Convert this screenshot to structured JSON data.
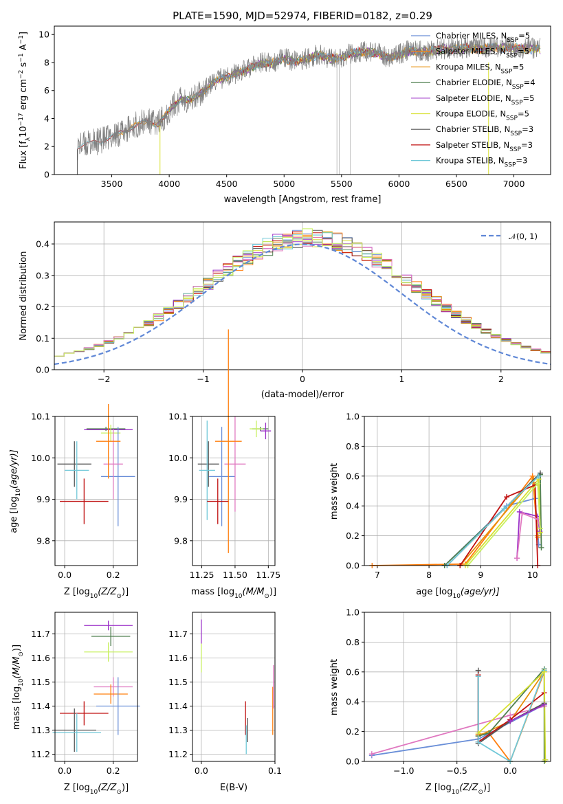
{
  "figure": {
    "title": "PLATE=1590, MJD=52974, FIBERID=0182, z=0.29"
  },
  "palette": {
    "Chabrier MILES": "#6a8fd8",
    "Salpeter MILES": "#ff7f0e",
    "Kroupa MILES": "#e8900c",
    "Chabrier ELODIE": "#4f7f4f",
    "Salpeter ELODIE": "#9b30c8",
    "Kroupa ELODIE": "#d8e030",
    "Chabrier STELIB": "#555555",
    "Salpeter STELIB": "#c01010",
    "Kroupa STELIB": "#70c8d8",
    "pink": "#e078c0",
    "lime": "#c8f060"
  },
  "chart_data": [
    {
      "id": "spectrum",
      "type": "line",
      "xlabel": "wavelength [Angstrom, rest frame]",
      "ylabel": "Flux [f",
      "ylabel_parts": [
        "Flux [f",
        "λ",
        "10",
        "−17",
        " erg cm",
        "−2",
        " s",
        "−1",
        " A",
        "−1",
        "]"
      ],
      "xlim": [
        3000,
        7320
      ],
      "ylim": [
        0,
        10.6
      ],
      "xticks": [
        "3500",
        "4000",
        "4500",
        "5000",
        "5500",
        "6000",
        "6500",
        "7000"
      ],
      "yticks": [
        "0",
        "2",
        "4",
        "6",
        "8",
        "10"
      ],
      "legend": [
        {
          "text": "Chabrier MILES, N",
          "sub": "SSP",
          "tail": "=5"
        },
        {
          "text": "Salpeter MILES, N",
          "sub": "SSP",
          "tail": "=5"
        },
        {
          "text": "Kroupa MILES, N",
          "sub": "SSP",
          "tail": "=5"
        },
        {
          "text": "Chabrier ELODIE, N",
          "sub": "SSP",
          "tail": "=4"
        },
        {
          "text": "Salpeter ELODIE, N",
          "sub": "SSP",
          "tail": "=5"
        },
        {
          "text": "Kroupa ELODIE, N",
          "sub": "SSP",
          "tail": "=5"
        },
        {
          "text": "Chabrier STELIB, N",
          "sub": "SSP",
          "tail": "=3"
        },
        {
          "text": "Salpeter STELIB, N",
          "sub": "SSP",
          "tail": "=3"
        },
        {
          "text": "Kroupa STELIB, N",
          "sub": "SSP",
          "tail": "=3"
        }
      ],
      "legend_placement": "upper-right",
      "grid": false,
      "envelope": {
        "x": [
          3200,
          3300,
          3400,
          3500,
          3600,
          3700,
          3800,
          3900,
          4000,
          4100,
          4200,
          4300,
          4400,
          4500,
          4600,
          4700,
          4800,
          4900,
          5000,
          5100,
          5200,
          5300,
          5400,
          5500,
          5600,
          5700,
          5800,
          5900,
          6000,
          6100,
          6200,
          6300,
          6400,
          6500,
          6600,
          6700,
          6800,
          6900,
          7000,
          7100,
          7200
        ],
        "y": [
          2.0,
          2.2,
          2.4,
          2.7,
          3.1,
          3.5,
          3.8,
          3.6,
          4.6,
          5.4,
          5.4,
          6.0,
          6.7,
          7.0,
          7.3,
          7.6,
          8.0,
          8.0,
          8.3,
          8.1,
          8.3,
          8.6,
          8.3,
          8.4,
          8.7,
          8.8,
          8.7,
          8.4,
          8.6,
          8.9,
          8.8,
          8.9,
          9.0,
          9.0,
          9.1,
          9.0,
          9.1,
          9.1,
          9.1,
          9.0,
          9.0
        ]
      }
    },
    {
      "id": "residuals",
      "type": "histogram",
      "xlabel": "(data-model)/error",
      "ylabel": "Normed distribution",
      "xlim": [
        -2.5,
        2.5
      ],
      "ylim": [
        0,
        0.47
      ],
      "xticks": [
        "−2",
        "−1",
        "0",
        "1",
        "2"
      ],
      "xtick_values": [
        -2,
        -1,
        0,
        1,
        2
      ],
      "yticks": [
        "0.0",
        "0.1",
        "0.2",
        "0.3",
        "0.4"
      ],
      "ytick_values": [
        0,
        0.1,
        0.2,
        0.3,
        0.4
      ],
      "grid": true,
      "legend": "𝒩(0, 1)",
      "legend_placement": "upper-right",
      "bin_width": 0.1
    },
    {
      "id": "age-vs-Z",
      "type": "errorbar",
      "xlabel": "Z [log",
      "xlabel_parts": [
        "Z [log",
        "10",
        "(Z/Z",
        "⊙",
        ")]"
      ],
      "ylabel_parts": [
        "age  [log",
        "10",
        "(age/yr)]"
      ],
      "xlim": [
        -0.04,
        0.3
      ],
      "ylim": [
        9.74,
        10.1
      ],
      "xticks": [
        "0.0",
        "0.2"
      ],
      "xtick_values": [
        0,
        0.2
      ],
      "yticks": [
        "9.8",
        "9.9",
        "10.0",
        "10.1"
      ],
      "ytick_values": [
        9.8,
        9.9,
        10.0,
        10.1
      ],
      "points": [
        {
          "x": 0.17,
          "xe": 0.08,
          "y": 10.07,
          "ye": 0.005,
          "c": "#4f7f4f"
        },
        {
          "x": 0.18,
          "xe": 0.1,
          "y": 10.068,
          "ye": 0.005,
          "c": "#9b30c8"
        },
        {
          "x": 0.19,
          "xe": 0.04,
          "y": 10.06,
          "ye": 0.02,
          "c": "#c8f060"
        },
        {
          "x": 0.22,
          "xe": 0.07,
          "y": 9.955,
          "ye": 0.12,
          "c": "#6a8fd8"
        },
        {
          "x": 0.2,
          "xe": 0.04,
          "y": 9.985,
          "ye": 0.085,
          "c": "#e078c0"
        },
        {
          "x": 0.18,
          "xe": 0.05,
          "y": 10.04,
          "ye": 0.09,
          "c": "#ff7f0e"
        },
        {
          "x": 0.04,
          "xe": 0.07,
          "y": 9.985,
          "ye": 0.055,
          "c": "#555555"
        },
        {
          "x": 0.05,
          "xe": 0.05,
          "y": 9.97,
          "ye": 0.07,
          "c": "#70c8d8"
        },
        {
          "x": 0.08,
          "xe": 0.1,
          "y": 9.895,
          "ye": 0.055,
          "c": "#c01010"
        }
      ]
    },
    {
      "id": "age-vs-mass",
      "type": "errorbar",
      "xlabel_parts": [
        "mass [log",
        "10",
        "(M/M",
        "⊙",
        ")]"
      ],
      "xlim": [
        11.18,
        11.8
      ],
      "ylim": [
        9.74,
        10.1
      ],
      "xticks": [
        "11.25",
        "11.50",
        "11.75"
      ],
      "xtick_values": [
        11.25,
        11.5,
        11.75
      ],
      "yticks": [
        "9.8",
        "9.9",
        "10.0",
        "10.1"
      ],
      "ytick_values": [
        9.8,
        9.9,
        10.0,
        10.1
      ],
      "points": [
        {
          "x": 11.69,
          "xe": 0.06,
          "y": 10.07,
          "ye": 0.005,
          "c": "#4f7f4f"
        },
        {
          "x": 11.73,
          "xe": 0.04,
          "y": 10.065,
          "ye": 0.02,
          "c": "#9b30c8"
        },
        {
          "x": 11.66,
          "xe": 0.05,
          "y": 10.07,
          "ye": 0.02,
          "c": "#c8f060"
        },
        {
          "x": 11.4,
          "xe": 0.1,
          "y": 9.955,
          "ye": 0.12,
          "c": "#6a8fd8"
        },
        {
          "x": 11.5,
          "xe": 0.08,
          "y": 9.985,
          "ye": 0.115,
          "c": "#e078c0"
        },
        {
          "x": 11.45,
          "xe": 0.1,
          "y": 10.04,
          "ye": 0.27,
          "c": "#ff7f0e"
        },
        {
          "x": 11.3,
          "xe": 0.08,
          "y": 9.985,
          "ye": 0.055,
          "c": "#555555"
        },
        {
          "x": 11.29,
          "xe": 0.06,
          "y": 9.97,
          "ye": 0.12,
          "c": "#70c8d8"
        },
        {
          "x": 11.37,
          "xe": 0.08,
          "y": 9.895,
          "ye": 0.055,
          "c": "#c01010"
        }
      ]
    },
    {
      "id": "massweight-vs-age",
      "type": "line",
      "xlabel_parts": [
        "age  [log",
        "10",
        "(age/yr)]"
      ],
      "ylabel": "mass weight",
      "xlim": [
        6.75,
        10.35
      ],
      "ylim": [
        0,
        1.0
      ],
      "xticks": [
        "7",
        "8",
        "9",
        "10"
      ],
      "xtick_values": [
        7,
        8,
        9,
        10
      ],
      "yticks": [
        "0.0",
        "0.2",
        "0.4",
        "0.6",
        "0.8",
        "1.0"
      ],
      "ytick_values": [
        0,
        0.2,
        0.4,
        0.6,
        0.8,
        1.0
      ],
      "grid": true,
      "series": [
        {
          "c": "#6a8fd8",
          "x": [
            8.3,
            9.5,
            10.05,
            10.12
          ],
          "y": [
            0.0,
            0.4,
            0.45,
            0.14
          ]
        },
        {
          "c": "#ff7f0e",
          "x": [
            6.9,
            8.7,
            10.0,
            10.1
          ],
          "y": [
            0.0,
            0.01,
            0.6,
            0.19
          ]
        },
        {
          "c": "#e8900c",
          "x": [
            8.6,
            10.02,
            10.1
          ],
          "y": [
            0.0,
            0.58,
            0.2
          ]
        },
        {
          "c": "#4f7f4f",
          "x": [
            8.3,
            10.15,
            10.17
          ],
          "y": [
            0.0,
            0.61,
            0.12
          ]
        },
        {
          "c": "#9b30c8",
          "x": [
            9.7,
            9.75,
            10.1,
            10.14
          ],
          "y": [
            0.05,
            0.36,
            0.33,
            0.23
          ]
        },
        {
          "c": "#d8e030",
          "x": [
            8.7,
            10.12,
            10.15
          ],
          "y": [
            0.0,
            0.58,
            0.22
          ]
        },
        {
          "c": "#555555",
          "x": [
            8.35,
            10.15
          ],
          "y": [
            0.0,
            0.62
          ]
        },
        {
          "c": "#c01010",
          "x": [
            8.6,
            9.5,
            10.05,
            10.1
          ],
          "y": [
            0.0,
            0.46,
            0.54,
            0.0
          ]
        },
        {
          "c": "#70c8d8",
          "x": [
            8.35,
            9.45,
            10.12
          ],
          "y": [
            0.0,
            0.38,
            0.6
          ]
        },
        {
          "c": "#e078c0",
          "x": [
            9.7,
            9.8,
            10.1,
            10.15
          ],
          "y": [
            0.05,
            0.35,
            0.31,
            0.25
          ]
        },
        {
          "c": "#c8f060",
          "x": [
            8.75,
            10.1,
            10.15
          ],
          "y": [
            0.0,
            0.55,
            0.25
          ]
        }
      ]
    },
    {
      "id": "mass-vs-Z",
      "type": "errorbar",
      "xlabel_parts": [
        "Z [log",
        "10",
        "(Z/Z",
        "⊙",
        ")]"
      ],
      "ylabel_parts": [
        "mass [log",
        "10",
        "(M/M",
        "⊙",
        ")]"
      ],
      "xlim": [
        -0.04,
        0.3
      ],
      "ylim": [
        11.17,
        11.79
      ],
      "xticks": [
        "0.0",
        "0.2"
      ],
      "xtick_values": [
        0,
        0.2
      ],
      "yticks": [
        "11.2",
        "11.3",
        "11.4",
        "11.5",
        "11.6",
        "11.7"
      ],
      "ytick_values": [
        11.2,
        11.3,
        11.4,
        11.5,
        11.6,
        11.7
      ],
      "points": [
        {
          "x": 0.18,
          "xe": 0.1,
          "y": 11.735,
          "ye": 0.02,
          "c": "#9b30c8"
        },
        {
          "x": 0.19,
          "xe": 0.08,
          "y": 11.69,
          "ye": 0.04,
          "c": "#4f7f4f"
        },
        {
          "x": 0.18,
          "xe": 0.1,
          "y": 11.625,
          "ye": 0.04,
          "c": "#c8f060"
        },
        {
          "x": 0.2,
          "xe": 0.08,
          "y": 11.48,
          "ye": 0.04,
          "c": "#e078c0"
        },
        {
          "x": 0.19,
          "xe": 0.07,
          "y": 11.45,
          "ye": 0.04,
          "c": "#ff7f0e"
        },
        {
          "x": 0.22,
          "xe": 0.09,
          "y": 11.4,
          "ye": 0.12,
          "c": "#6a8fd8"
        },
        {
          "x": 0.08,
          "xe": 0.1,
          "y": 11.37,
          "ye": 0.05,
          "c": "#c01010"
        },
        {
          "x": 0.04,
          "xe": 0.09,
          "y": 11.3,
          "ye": 0.09,
          "c": "#555555"
        },
        {
          "x": 0.05,
          "xe": 0.1,
          "y": 11.29,
          "ye": 0.08,
          "c": "#70c8d8"
        }
      ]
    },
    {
      "id": "mass-vs-EBV",
      "type": "errorbar",
      "xlabel": "E(B-V)",
      "xlim": [
        -0.012,
        0.1
      ],
      "ylim": [
        11.17,
        11.79
      ],
      "xticks": [
        "0.0",
        "0.1"
      ],
      "xtick_values": [
        0,
        0.1
      ],
      "yticks": [
        "11.2",
        "11.3",
        "11.4",
        "11.5",
        "11.6",
        "11.7"
      ],
      "ytick_values": [
        11.2,
        11.3,
        11.4,
        11.5,
        11.6,
        11.7
      ],
      "points": [
        {
          "x": 0.0,
          "xe": 0,
          "y": 11.71,
          "ye": 0.05,
          "c": "#9b30c8"
        },
        {
          "x": 0.0,
          "xe": 0,
          "y": 11.6,
          "ye": 0.06,
          "c": "#c8f060"
        },
        {
          "x": 0.06,
          "xe": 0,
          "y": 11.35,
          "ye": 0.07,
          "c": "#c01010"
        },
        {
          "x": 0.061,
          "xe": 0,
          "y": 11.26,
          "ye": 0.06,
          "c": "#70c8d8"
        },
        {
          "x": 0.063,
          "xe": 0,
          "y": 11.3,
          "ye": 0.05,
          "c": "#555555"
        },
        {
          "x": 0.097,
          "xe": 0,
          "y": 11.38,
          "ye": 0.1,
          "c": "#ff7f0e"
        },
        {
          "x": 0.098,
          "xe": 0,
          "y": 11.48,
          "ye": 0.09,
          "c": "#e078c0"
        }
      ]
    },
    {
      "id": "massweight-vs-Z",
      "type": "line",
      "xlabel_parts": [
        "Z [log",
        "10",
        "(Z/Z",
        "⊙",
        ")]"
      ],
      "ylabel": "mass weight",
      "xlim": [
        -1.37,
        0.38
      ],
      "ylim": [
        0,
        1.0
      ],
      "xticks": [
        "−1.0",
        "−0.5",
        "0.0"
      ],
      "xtick_values": [
        -1.0,
        -0.5,
        0.0
      ],
      "yticks": [
        "0.0",
        "0.2",
        "0.4",
        "0.6",
        "0.8",
        "1.0"
      ],
      "ytick_values": [
        0,
        0.2,
        0.4,
        0.6,
        0.8,
        1.0
      ],
      "grid": true,
      "series": [
        {
          "c": "#6a8fd8",
          "x": [
            -1.3,
            -0.3,
            0.32,
            0.33
          ],
          "y": [
            0.04,
            0.15,
            0.38,
            0.01
          ]
        },
        {
          "c": "#e078c0",
          "x": [
            -1.3,
            0.0,
            0.32
          ],
          "y": [
            0.05,
            0.31,
            0.37
          ]
        },
        {
          "c": "#ff7f0e",
          "x": [
            -0.3,
            -0.2,
            0.0,
            0.32
          ],
          "y": [
            0.18,
            0.19,
            0.0,
            0.6
          ]
        },
        {
          "c": "#e8900c",
          "x": [
            -0.3,
            0.0,
            0.32
          ],
          "y": [
            0.17,
            0.27,
            0.6
          ]
        },
        {
          "c": "#4f7f4f",
          "x": [
            -0.3,
            -0.2,
            0.32,
            0.32
          ],
          "y": [
            0.17,
            0.19,
            0.62,
            0.0
          ]
        },
        {
          "c": "#555555",
          "x": [
            -0.3,
            -0.3,
            0.0,
            0.32
          ],
          "y": [
            0.61,
            0.12,
            0.27,
            0.39
          ]
        },
        {
          "c": "#c01010",
          "x": [
            -0.3,
            -0.3,
            0.0,
            0.32
          ],
          "y": [
            0.58,
            0.13,
            0.28,
            0.46
          ]
        },
        {
          "c": "#70c8d8",
          "x": [
            -0.3,
            -0.3,
            0.0,
            0.32
          ],
          "y": [
            0.57,
            0.13,
            0.0,
            0.61
          ]
        },
        {
          "c": "#d8e030",
          "x": [
            -0.3,
            0.32,
            0.33
          ],
          "y": [
            0.19,
            0.6,
            0.01
          ]
        },
        {
          "c": "#9b30c8",
          "x": [
            0.0,
            0.32
          ],
          "y": [
            0.27,
            0.38
          ]
        }
      ]
    }
  ]
}
